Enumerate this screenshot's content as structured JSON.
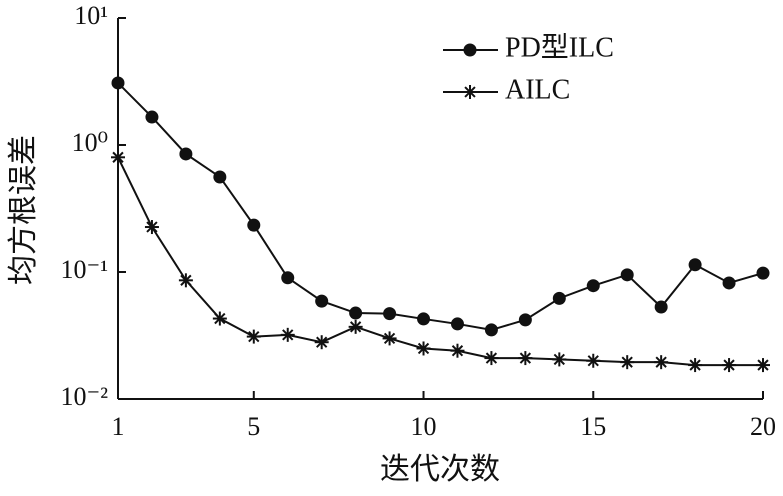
{
  "chart_data": {
    "type": "line",
    "xlabel": "迭代次数",
    "ylabel": "均方根误差",
    "log_y": true,
    "legend": "top-right",
    "x": [
      1,
      2,
      3,
      4,
      5,
      6,
      7,
      8,
      9,
      10,
      11,
      12,
      13,
      14,
      15,
      16,
      17,
      18,
      19,
      20
    ],
    "series": [
      {
        "name": "PD型ILC",
        "color": "#111111",
        "marker": "circle",
        "values": [
          3.08,
          1.66,
          0.85,
          0.56,
          0.234,
          0.09,
          0.059,
          0.0475,
          0.047,
          0.0427,
          0.039,
          0.035,
          0.042,
          0.062,
          0.078,
          0.095,
          0.053,
          0.114,
          0.082,
          0.098
        ]
      },
      {
        "name": "AILC",
        "color": "#111111",
        "marker": "star",
        "values": [
          0.8,
          0.226,
          0.086,
          0.043,
          0.031,
          0.032,
          0.028,
          0.037,
          0.03,
          0.025,
          0.024,
          0.021,
          0.021,
          0.0205,
          0.02,
          0.0195,
          0.0195,
          0.0185,
          0.0185,
          0.0185
        ]
      }
    ],
    "xlim": [
      1,
      20
    ],
    "xticks": [
      1,
      5,
      10,
      15,
      20
    ],
    "ylim": [
      0.01,
      10
    ],
    "yticks": [
      {
        "value": 0.01,
        "label": "10⁻²"
      },
      {
        "value": 0.1,
        "label": "10⁻¹"
      },
      {
        "value": 1,
        "label": "10⁰"
      },
      {
        "value": 10,
        "label": "10¹"
      }
    ]
  }
}
